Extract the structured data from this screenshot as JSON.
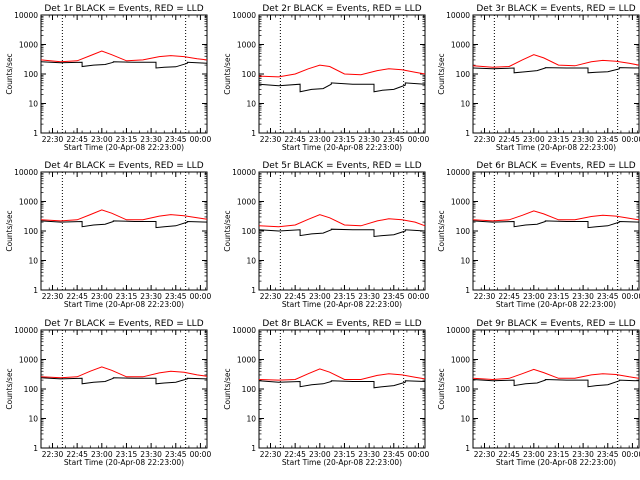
{
  "figure": {
    "background": "#ffffff",
    "axis_color": "#000000"
  },
  "chart_data": [
    {
      "type": "line",
      "title": "Det 1r BLACK = Events, RED = LLD",
      "xlabel": "Start Time (20-Apr-08 22:23:00)",
      "ylabel": "Counts/sec",
      "yscale": "log",
      "ylim": [
        1,
        10000
      ],
      "y_ticks": [
        1,
        10,
        100,
        1000,
        10000
      ],
      "y_tick_labels": [
        "1",
        "10",
        "100",
        "1000",
        "10000"
      ],
      "xlim": [
        "22:23",
        "00:04"
      ],
      "x_ticks": [
        "22:30",
        "22:45",
        "23:00",
        "23:15",
        "23:30",
        "23:45",
        "00:00"
      ],
      "vlines": [
        "22:36",
        "23:51"
      ],
      "grid": false,
      "series": [
        {
          "color": "#ff0000",
          "x": [
            "22:23",
            "22:35",
            "22:45",
            "22:53",
            "23:00",
            "23:06",
            "23:15",
            "23:25",
            "23:35",
            "23:42",
            "23:50",
            "23:58",
            "00:04"
          ],
          "values": [
            300,
            260,
            280,
            420,
            600,
            450,
            280,
            300,
            390,
            420,
            390,
            330,
            300
          ]
        },
        {
          "color": "#000000",
          "x": [
            "22:23",
            "22:35",
            "22:48",
            "22:48",
            "22:55",
            "23:02",
            "23:07",
            "23:07",
            "23:20",
            "23:33",
            "23:33",
            "23:38",
            "23:45",
            "23:52",
            "23:52",
            "00:04"
          ],
          "values": [
            260,
            240,
            250,
            180,
            200,
            210,
            250,
            260,
            250,
            250,
            160,
            170,
            175,
            230,
            250,
            230
          ]
        }
      ]
    },
    {
      "type": "line",
      "title": "Det 2r BLACK = Events, RED = LLD",
      "xlabel": "Start Time (20-Apr-08 22:23:00)",
      "ylabel": "Counts/sec",
      "yscale": "log",
      "ylim": [
        1,
        10000
      ],
      "y_ticks": [
        1,
        10,
        100,
        1000,
        10000
      ],
      "y_tick_labels": [
        "1",
        "10",
        "100",
        "1000",
        "10000"
      ],
      "xlim": [
        "22:23",
        "00:04"
      ],
      "x_ticks": [
        "22:30",
        "22:45",
        "23:00",
        "23:15",
        "23:30",
        "23:45",
        "00:00"
      ],
      "vlines": [
        "22:36",
        "23:51"
      ],
      "grid": false,
      "series": [
        {
          "color": "#ff0000",
          "x": [
            "22:23",
            "22:35",
            "22:45",
            "22:53",
            "23:00",
            "23:06",
            "23:15",
            "23:25",
            "23:35",
            "23:42",
            "23:50",
            "23:58",
            "00:04"
          ],
          "values": [
            85,
            80,
            100,
            150,
            200,
            180,
            100,
            95,
            130,
            150,
            140,
            115,
            100
          ]
        },
        {
          "color": "#000000",
          "x": [
            "22:23",
            "22:35",
            "22:48",
            "22:48",
            "22:55",
            "23:02",
            "23:07",
            "23:07",
            "23:20",
            "23:33",
            "23:33",
            "23:38",
            "23:45",
            "23:52",
            "23:52",
            "00:04"
          ],
          "values": [
            45,
            40,
            45,
            25,
            30,
            32,
            45,
            50,
            45,
            45,
            25,
            28,
            30,
            42,
            50,
            45
          ]
        }
      ]
    },
    {
      "type": "line",
      "title": "Det 3r BLACK = Events, RED = LLD",
      "xlabel": "Start Time (20-Apr-08 22:23:00)",
      "ylabel": "Counts/sec",
      "yscale": "log",
      "ylim": [
        1,
        10000
      ],
      "y_ticks": [
        1,
        10,
        100,
        1000,
        10000
      ],
      "y_tick_labels": [
        "1",
        "10",
        "100",
        "1000",
        "10000"
      ],
      "xlim": [
        "22:23",
        "00:04"
      ],
      "x_ticks": [
        "22:30",
        "22:45",
        "23:00",
        "23:15",
        "23:30",
        "23:45",
        "00:00"
      ],
      "vlines": [
        "22:36",
        "23:51"
      ],
      "grid": false,
      "series": [
        {
          "color": "#ff0000",
          "x": [
            "22:23",
            "22:35",
            "22:45",
            "22:53",
            "23:00",
            "23:06",
            "23:15",
            "23:25",
            "23:35",
            "23:42",
            "23:50",
            "23:58",
            "00:04"
          ],
          "values": [
            190,
            170,
            180,
            300,
            450,
            350,
            200,
            190,
            260,
            290,
            270,
            230,
            200
          ]
        },
        {
          "color": "#000000",
          "x": [
            "22:23",
            "22:35",
            "22:48",
            "22:48",
            "22:55",
            "23:02",
            "23:07",
            "23:07",
            "23:20",
            "23:33",
            "23:33",
            "23:38",
            "23:45",
            "23:52",
            "23:52",
            "00:04"
          ],
          "values": [
            160,
            150,
            160,
            110,
            120,
            130,
            160,
            165,
            160,
            160,
            110,
            115,
            120,
            150,
            165,
            160
          ]
        }
      ]
    },
    {
      "type": "line",
      "title": "Det 4r BLACK = Events, RED = LLD",
      "xlabel": "Start Time (20-Apr-08 22:23:00)",
      "ylabel": "Counts/sec",
      "yscale": "log",
      "ylim": [
        1,
        10000
      ],
      "y_ticks": [
        1,
        10,
        100,
        1000,
        10000
      ],
      "y_tick_labels": [
        "1",
        "10",
        "100",
        "1000",
        "10000"
      ],
      "xlim": [
        "22:23",
        "00:04"
      ],
      "x_ticks": [
        "22:30",
        "22:45",
        "23:00",
        "23:15",
        "23:30",
        "23:45",
        "00:00"
      ],
      "vlines": [
        "22:36",
        "23:51"
      ],
      "grid": false,
      "series": [
        {
          "color": "#ff0000",
          "x": [
            "22:23",
            "22:35",
            "22:45",
            "22:53",
            "23:00",
            "23:06",
            "23:15",
            "23:25",
            "23:35",
            "23:42",
            "23:50",
            "23:58",
            "00:04"
          ],
          "values": [
            240,
            220,
            240,
            360,
            520,
            400,
            240,
            240,
            320,
            360,
            330,
            280,
            250
          ]
        },
        {
          "color": "#000000",
          "x": [
            "22:23",
            "22:35",
            "22:48",
            "22:48",
            "22:55",
            "23:02",
            "23:07",
            "23:07",
            "23:20",
            "23:33",
            "23:33",
            "23:38",
            "23:45",
            "23:52",
            "23:52",
            "00:04"
          ],
          "values": [
            220,
            200,
            210,
            140,
            160,
            170,
            210,
            220,
            210,
            210,
            130,
            140,
            150,
            200,
            210,
            200
          ]
        }
      ]
    },
    {
      "type": "line",
      "title": "Det 5r BLACK = Events, RED = LLD",
      "xlabel": "Start Time (20-Apr-08 22:23:00)",
      "ylabel": "Counts/sec",
      "yscale": "log",
      "ylim": [
        1,
        10000
      ],
      "y_ticks": [
        1,
        10,
        100,
        1000,
        10000
      ],
      "y_tick_labels": [
        "1",
        "10",
        "100",
        "1000",
        "10000"
      ],
      "xlim": [
        "22:23",
        "00:04"
      ],
      "x_ticks": [
        "22:30",
        "22:45",
        "23:00",
        "23:15",
        "23:30",
        "23:45",
        "00:00"
      ],
      "vlines": [
        "22:36",
        "23:51"
      ],
      "grid": false,
      "series": [
        {
          "color": "#ff0000",
          "x": [
            "22:23",
            "22:35",
            "22:45",
            "22:53",
            "23:00",
            "23:06",
            "23:15",
            "23:25",
            "23:35",
            "23:42",
            "23:50",
            "23:58",
            "00:04"
          ],
          "values": [
            150,
            140,
            160,
            250,
            360,
            280,
            160,
            150,
            220,
            260,
            240,
            200,
            150
          ]
        },
        {
          "color": "#000000",
          "x": [
            "22:23",
            "22:35",
            "22:48",
            "22:48",
            "22:55",
            "23:02",
            "23:07",
            "23:07",
            "23:20",
            "23:33",
            "23:33",
            "23:38",
            "23:45",
            "23:52",
            "23:52",
            "00:04"
          ],
          "values": [
            110,
            100,
            110,
            70,
            80,
            85,
            110,
            115,
            110,
            110,
            65,
            70,
            75,
            100,
            110,
            100
          ]
        }
      ]
    },
    {
      "type": "line",
      "title": "Det 6r BLACK = Events, RED = LLD",
      "xlabel": "Start Time (20-Apr-08 22:23:00)",
      "ylabel": "Counts/sec",
      "yscale": "log",
      "ylim": [
        1,
        10000
      ],
      "y_ticks": [
        1,
        10,
        100,
        1000,
        10000
      ],
      "y_tick_labels": [
        "1",
        "10",
        "100",
        "1000",
        "10000"
      ],
      "xlim": [
        "22:23",
        "00:04"
      ],
      "x_ticks": [
        "22:30",
        "22:45",
        "23:00",
        "23:15",
        "23:30",
        "23:45",
        "00:00"
      ],
      "vlines": [
        "22:36",
        "23:51"
      ],
      "grid": false,
      "series": [
        {
          "color": "#ff0000",
          "x": [
            "22:23",
            "22:35",
            "22:45",
            "22:53",
            "23:00",
            "23:06",
            "23:15",
            "23:25",
            "23:35",
            "23:42",
            "23:50",
            "23:58",
            "00:04"
          ],
          "values": [
            240,
            220,
            240,
            340,
            480,
            380,
            240,
            240,
            310,
            340,
            320,
            270,
            240
          ]
        },
        {
          "color": "#000000",
          "x": [
            "22:23",
            "22:35",
            "22:48",
            "22:48",
            "22:55",
            "23:02",
            "23:07",
            "23:07",
            "23:20",
            "23:33",
            "23:33",
            "23:38",
            "23:45",
            "23:52",
            "23:52",
            "00:04"
          ],
          "values": [
            220,
            200,
            210,
            140,
            160,
            170,
            210,
            220,
            210,
            210,
            130,
            140,
            150,
            200,
            210,
            200
          ]
        }
      ]
    },
    {
      "type": "line",
      "title": "Det 7r BLACK = Events, RED = LLD",
      "xlabel": "Start Time (20-Apr-08 22:23:00)",
      "ylabel": "Counts/sec",
      "yscale": "log",
      "ylim": [
        1,
        10000
      ],
      "y_ticks": [
        1,
        10,
        100,
        1000,
        10000
      ],
      "y_tick_labels": [
        "1",
        "10",
        "100",
        "1000",
        "10000"
      ],
      "xlim": [
        "22:23",
        "00:04"
      ],
      "x_ticks": [
        "22:30",
        "22:45",
        "23:00",
        "23:15",
        "23:30",
        "23:45",
        "00:00"
      ],
      "vlines": [
        "22:36",
        "23:51"
      ],
      "grid": false,
      "series": [
        {
          "color": "#ff0000",
          "x": [
            "22:23",
            "22:35",
            "22:45",
            "22:53",
            "23:00",
            "23:06",
            "23:15",
            "23:25",
            "23:35",
            "23:42",
            "23:50",
            "23:58",
            "00:04"
          ],
          "values": [
            260,
            240,
            260,
            400,
            560,
            430,
            260,
            260,
            350,
            400,
            370,
            300,
            270
          ]
        },
        {
          "color": "#000000",
          "x": [
            "22:23",
            "22:35",
            "22:48",
            "22:48",
            "22:55",
            "23:02",
            "23:07",
            "23:07",
            "23:20",
            "23:33",
            "23:33",
            "23:38",
            "23:45",
            "23:52",
            "23:52",
            "00:04"
          ],
          "values": [
            240,
            220,
            230,
            150,
            170,
            180,
            230,
            240,
            230,
            230,
            150,
            160,
            170,
            220,
            230,
            220
          ]
        }
      ]
    },
    {
      "type": "line",
      "title": "Det 8r BLACK = Events, RED = LLD",
      "xlabel": "Start Time (20-Apr-08 22:23:00)",
      "ylabel": "Counts/sec",
      "yscale": "log",
      "ylim": [
        1,
        10000
      ],
      "y_ticks": [
        1,
        10,
        100,
        1000,
        10000
      ],
      "y_tick_labels": [
        "1",
        "10",
        "100",
        "1000",
        "10000"
      ],
      "xlim": [
        "22:23",
        "00:04"
      ],
      "x_ticks": [
        "22:30",
        "22:45",
        "23:00",
        "23:15",
        "23:30",
        "23:45",
        "00:00"
      ],
      "vlines": [
        "22:36",
        "23:51"
      ],
      "grid": false,
      "series": [
        {
          "color": "#ff0000",
          "x": [
            "22:23",
            "22:35",
            "22:45",
            "22:53",
            "23:00",
            "23:06",
            "23:15",
            "23:25",
            "23:35",
            "23:42",
            "23:50",
            "23:58",
            "00:04"
          ],
          "values": [
            210,
            200,
            210,
            330,
            480,
            370,
            210,
            210,
            290,
            330,
            300,
            250,
            220
          ]
        },
        {
          "color": "#000000",
          "x": [
            "22:23",
            "22:35",
            "22:48",
            "22:48",
            "22:55",
            "23:02",
            "23:07",
            "23:07",
            "23:20",
            "23:33",
            "23:33",
            "23:38",
            "23:45",
            "23:52",
            "23:52",
            "00:04"
          ],
          "values": [
            190,
            170,
            180,
            120,
            140,
            150,
            180,
            190,
            180,
            180,
            110,
            120,
            130,
            170,
            190,
            180
          ]
        }
      ]
    },
    {
      "type": "line",
      "title": "Det 9r BLACK = Events, RED = LLD",
      "xlabel": "Start Time (20-Apr-08 22:23:00)",
      "ylabel": "Counts/sec",
      "yscale": "log",
      "ylim": [
        1,
        10000
      ],
      "y_ticks": [
        1,
        10,
        100,
        1000,
        10000
      ],
      "y_tick_labels": [
        "1",
        "10",
        "100",
        "1000",
        "10000"
      ],
      "xlim": [
        "22:23",
        "00:04"
      ],
      "x_ticks": [
        "22:30",
        "22:45",
        "23:00",
        "23:15",
        "23:30",
        "23:45",
        "00:00"
      ],
      "vlines": [
        "22:36",
        "23:51"
      ],
      "grid": false,
      "series": [
        {
          "color": "#ff0000",
          "x": [
            "22:23",
            "22:35",
            "22:45",
            "22:53",
            "23:00",
            "23:06",
            "23:15",
            "23:25",
            "23:35",
            "23:42",
            "23:50",
            "23:58",
            "00:04"
          ],
          "values": [
            230,
            210,
            230,
            330,
            460,
            360,
            230,
            230,
            300,
            330,
            310,
            260,
            230
          ]
        },
        {
          "color": "#000000",
          "x": [
            "22:23",
            "22:35",
            "22:48",
            "22:48",
            "22:55",
            "23:02",
            "23:07",
            "23:07",
            "23:20",
            "23:33",
            "23:33",
            "23:38",
            "23:45",
            "23:52",
            "23:52",
            "00:04"
          ],
          "values": [
            210,
            190,
            200,
            130,
            150,
            160,
            200,
            210,
            200,
            200,
            120,
            130,
            140,
            190,
            200,
            190
          ]
        }
      ]
    }
  ]
}
